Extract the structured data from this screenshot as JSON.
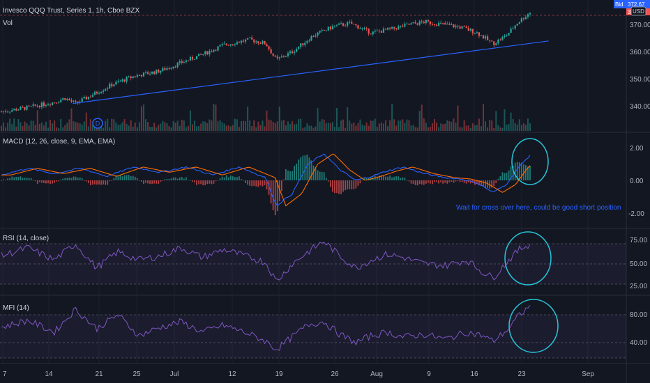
{
  "header": {
    "title": "Invesco QQQ Trust, Series 1, 1h, Cboe BZX",
    "vol_label": "Vol",
    "bid_label": "Bid",
    "price_tag": "372.67",
    "ask_tag": "372.64",
    "currency": "USD"
  },
  "colors": {
    "background": "#131722",
    "up": "#26a69a",
    "down": "#ef5350",
    "trendline": "#2962ff",
    "macd": "#2962ff",
    "signal": "#ff6d00",
    "oscillator": "#7e57c2",
    "annotation": "#26c6da"
  },
  "panes": {
    "price": {
      "y_ticks": [
        "370.00",
        "360.00",
        "350.00",
        "340.00"
      ],
      "event_marker": "D"
    },
    "macd": {
      "label": "MACD (12, 26, close, 9, EMA, EMA)",
      "y_ticks": [
        "2.00",
        "0.00",
        "-2.00"
      ],
      "annotation": "Wait for cross over here, could be good short position"
    },
    "rsi": {
      "label": "RSI (14, close)",
      "y_ticks": [
        "75.00",
        "50.00",
        "25.00"
      ]
    },
    "mfi": {
      "label": "MFI (14)",
      "y_ticks": [
        "80.00",
        "40.00"
      ]
    }
  },
  "x_axis": {
    "ticks": [
      "7",
      "14",
      "21",
      "25",
      "Jul",
      "12",
      "19",
      "26",
      "Aug",
      "9",
      "16",
      "23",
      "Sep"
    ]
  },
  "chart_data": {
    "type": "candlestick",
    "price_range": [
      333,
      374
    ],
    "price_path": [
      [
        0,
        336.0
      ],
      [
        0.05,
        337.5
      ],
      [
        0.1,
        339.5
      ],
      [
        0.12,
        341.0
      ],
      [
        0.14,
        339.0
      ],
      [
        0.17,
        342.0
      ],
      [
        0.21,
        346.0
      ],
      [
        0.25,
        349.0
      ],
      [
        0.3,
        351.0
      ],
      [
        0.34,
        354.0
      ],
      [
        0.38,
        357.0
      ],
      [
        0.42,
        360.5
      ],
      [
        0.47,
        362.5
      ],
      [
        0.5,
        361.0
      ],
      [
        0.52,
        355.0
      ],
      [
        0.55,
        358.0
      ],
      [
        0.59,
        364.0
      ],
      [
        0.63,
        367.5
      ],
      [
        0.66,
        368.5
      ],
      [
        0.7,
        365.0
      ],
      [
        0.74,
        366.5
      ],
      [
        0.77,
        368.0
      ],
      [
        0.8,
        369.0
      ],
      [
        0.84,
        368.0
      ],
      [
        0.87,
        367.0
      ],
      [
        0.9,
        365.0
      ],
      [
        0.93,
        361.0
      ],
      [
        0.955,
        364.0
      ],
      [
        0.975,
        368.5
      ],
      [
        1.0,
        372.6
      ]
    ],
    "trendline": [
      [
        0.135,
        339.0
      ],
      [
        1.035,
        362.0
      ]
    ],
    "macd_range": [
      -2.6,
      2.6
    ],
    "macd_path": [
      [
        0,
        0.4
      ],
      [
        0.05,
        0.9
      ],
      [
        0.1,
        0.5
      ],
      [
        0.15,
        0.9
      ],
      [
        0.2,
        0.3
      ],
      [
        0.25,
        1.0
      ],
      [
        0.3,
        0.6
      ],
      [
        0.35,
        1.0
      ],
      [
        0.4,
        0.4
      ],
      [
        0.45,
        1.0
      ],
      [
        0.5,
        0.2
      ],
      [
        0.52,
        -1.9
      ],
      [
        0.55,
        -1.0
      ],
      [
        0.58,
        1.2
      ],
      [
        0.61,
        2.0
      ],
      [
        0.64,
        0.8
      ],
      [
        0.67,
        0.0
      ],
      [
        0.7,
        0.3
      ],
      [
        0.73,
        0.7
      ],
      [
        0.76,
        1.0
      ],
      [
        0.8,
        0.5
      ],
      [
        0.84,
        0.2
      ],
      [
        0.87,
        0.1
      ],
      [
        0.9,
        -0.2
      ],
      [
        0.93,
        -0.9
      ],
      [
        0.955,
        -0.3
      ],
      [
        0.975,
        0.8
      ],
      [
        1.0,
        1.9
      ]
    ],
    "rsi_range": [
      20,
      90
    ],
    "rsi_path": [
      [
        0,
        60
      ],
      [
        0.05,
        70
      ],
      [
        0.1,
        55
      ],
      [
        0.14,
        75
      ],
      [
        0.18,
        45
      ],
      [
        0.22,
        65
      ],
      [
        0.26,
        55
      ],
      [
        0.3,
        60
      ],
      [
        0.34,
        70
      ],
      [
        0.38,
        58
      ],
      [
        0.42,
        68
      ],
      [
        0.46,
        60
      ],
      [
        0.5,
        52
      ],
      [
        0.52,
        28
      ],
      [
        0.55,
        50
      ],
      [
        0.58,
        65
      ],
      [
        0.61,
        78
      ],
      [
        0.64,
        60
      ],
      [
        0.67,
        45
      ],
      [
        0.7,
        55
      ],
      [
        0.73,
        62
      ],
      [
        0.76,
        58
      ],
      [
        0.8,
        50
      ],
      [
        0.84,
        48
      ],
      [
        0.88,
        55
      ],
      [
        0.91,
        40
      ],
      [
        0.93,
        33
      ],
      [
        0.96,
        55
      ],
      [
        0.98,
        68
      ],
      [
        1.0,
        75
      ]
    ],
    "mfi_range": [
      20,
      100
    ],
    "mfi_path": [
      [
        0,
        62
      ],
      [
        0.05,
        72
      ],
      [
        0.1,
        55
      ],
      [
        0.14,
        88
      ],
      [
        0.18,
        60
      ],
      [
        0.22,
        80
      ],
      [
        0.26,
        50
      ],
      [
        0.3,
        62
      ],
      [
        0.34,
        70
      ],
      [
        0.38,
        55
      ],
      [
        0.42,
        65
      ],
      [
        0.46,
        55
      ],
      [
        0.5,
        42
      ],
      [
        0.52,
        30
      ],
      [
        0.55,
        48
      ],
      [
        0.58,
        66
      ],
      [
        0.61,
        70
      ],
      [
        0.64,
        52
      ],
      [
        0.67,
        40
      ],
      [
        0.7,
        50
      ],
      [
        0.73,
        55
      ],
      [
        0.76,
        48
      ],
      [
        0.8,
        52
      ],
      [
        0.84,
        45
      ],
      [
        0.88,
        55
      ],
      [
        0.91,
        50
      ],
      [
        0.93,
        42
      ],
      [
        0.96,
        60
      ],
      [
        0.98,
        80
      ],
      [
        1.0,
        92
      ]
    ]
  }
}
